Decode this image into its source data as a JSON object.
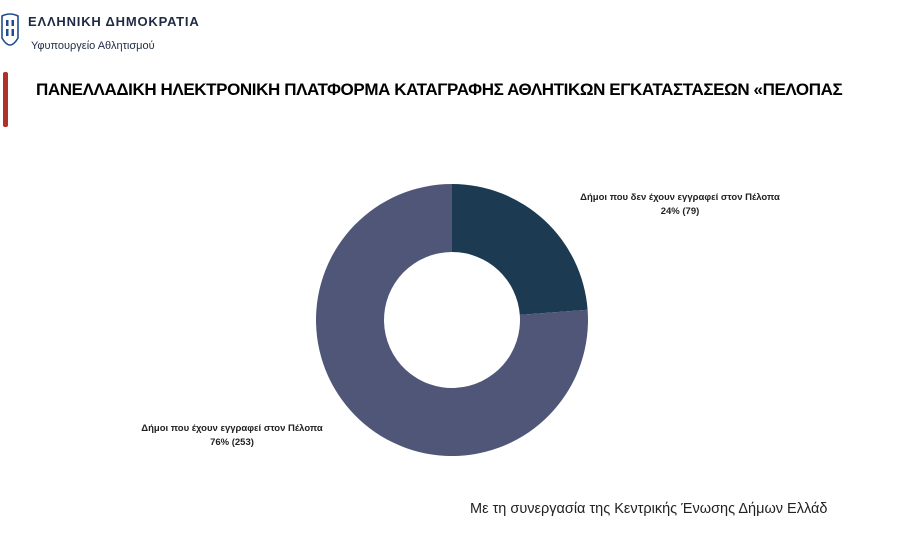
{
  "header": {
    "country": "ΕΛΛΗΝΙΚΗ ΔΗΜΟΚΡΑΤΙΑ",
    "ministry": "Υφυπουργείο Αθλητισμού",
    "title": "ΠΑΝΕΛΛΑΔΙΚΗ ΗΛΕΚΤΡΟΝΙΚΗ ΠΛΑΤΦΟΡΜΑ ΚΑΤΑΓΡΑΦΗΣ ΑΘΛΗΤΙΚΩΝ ΕΓΚΑΤΑΣΤΑΣΕΩΝ «ΠΕΛΟΠΑΣ"
  },
  "footer": {
    "note": "Με τη συνεργασία της Κεντρικής Ένωσης Δήμων Ελλάδ"
  },
  "colors": {
    "accent": "#b0302a",
    "slice_registered": "#4f5677",
    "slice_not_registered": "#1c3a52"
  },
  "chart_data": {
    "type": "pie",
    "donut": true,
    "title": "",
    "slices": [
      {
        "label": "Δήμοι που δεν έχουν εγγραφεί στον Πέλοπα",
        "value": 79,
        "percent_label": "24% (79)",
        "color": "#1c3a52"
      },
      {
        "label": "Δήμοι που έχουν εγγραφεί στον Πέλοπα",
        "value": 253,
        "percent_label": "76% (253)",
        "color": "#4f5677"
      }
    ],
    "legend": "none"
  }
}
